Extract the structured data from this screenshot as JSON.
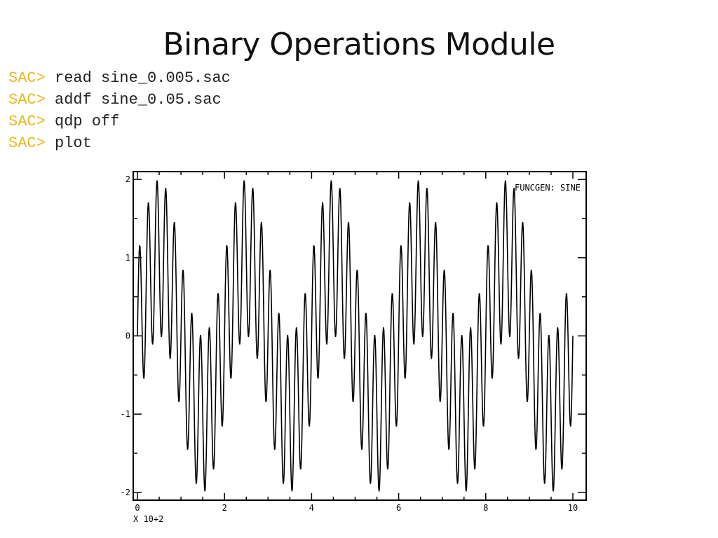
{
  "slide": {
    "title": "Binary Operations Module"
  },
  "console": {
    "lines": [
      {
        "prompt": "SAC>",
        "command": "read sine_0.005.sac"
      },
      {
        "prompt": "SAC>",
        "command": "addf sine_0.05.sac"
      },
      {
        "prompt": "SAC>",
        "command": "qdp off"
      },
      {
        "prompt": "SAC>",
        "command": "plot"
      }
    ],
    "prompt_color": "#e8b923"
  },
  "chart_data": {
    "type": "line",
    "title": "FUNCGEN: SINE",
    "x_multiplier_label": "X 10+2",
    "xlim": [
      0,
      10.15
    ],
    "ylim": [
      -2.1,
      2.1
    ],
    "x_ticks": [
      0,
      2,
      4,
      6,
      8,
      10
    ],
    "x_tick_labels": [
      "0",
      "2",
      "4",
      "6",
      "8",
      "10"
    ],
    "y_ticks": [
      -2,
      -1,
      0,
      1,
      2
    ],
    "y_tick_labels": [
      "-2",
      "-1",
      "0",
      "1",
      "2"
    ],
    "series": [
      {
        "components": [
          {
            "frequency": 0.005,
            "amplitude": 1
          },
          {
            "frequency": 0.05,
            "amplitude": 1
          }
        ],
        "x_range": [
          0,
          1000
        ],
        "x_step": 1,
        "color": "#000000"
      }
    ]
  }
}
